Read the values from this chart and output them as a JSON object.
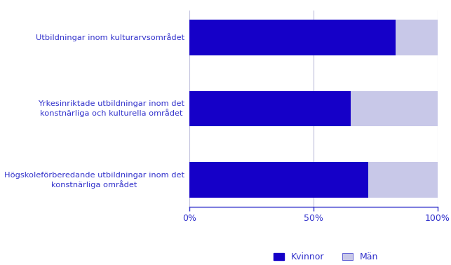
{
  "categories": [
    "Utbildningar inom kulturarvsområdet",
    "Yrkesinriktade utbildningar inom det\nkonstnärliga och kulturella området",
    "Högskoleförberedande utbildningar inom det\nkonstnärliga området"
  ],
  "kvinnor": [
    83,
    65,
    72
  ],
  "man": [
    17,
    35,
    28
  ],
  "bar_color_kvinnor": "#1500C8",
  "bar_color_man": "#C8C8E8",
  "text_color": "#3333CC",
  "background_color": "#FFFFFF",
  "xticks": [
    0,
    50,
    100
  ],
  "xtick_labels": [
    "0%",
    "50%",
    "100%"
  ],
  "legend_labels": [
    "Kvinnor",
    "Män"
  ],
  "grid_color": "#C0C0DC",
  "bar_height": 0.5
}
